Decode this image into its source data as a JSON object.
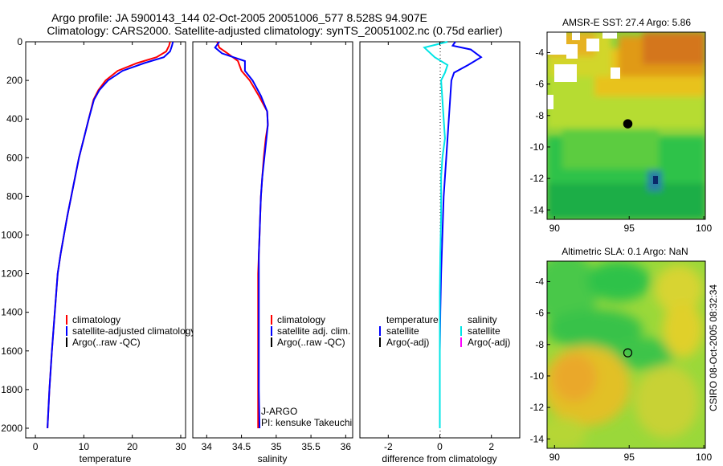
{
  "title_line1": "Argo profile: JA 5900143_144 02-Oct-2005 20051006_577 8.528S 94.907E",
  "title_line2": "Climatology: CARS2000. Satellite-adjusted climatology: synTS_20051002.nc (0.75d earlier)",
  "side_label": "CSIRO 08-Oct-2005 08:32:34",
  "colors": {
    "clim": "#ff0000",
    "sat": "#0000ff",
    "argo": "#000000",
    "cyan": "#00e5e5",
    "magenta": "#ff00ff"
  },
  "chart_data": [
    {
      "id": "temperature",
      "type": "line",
      "xlabel": "temperature",
      "ylabel": "",
      "xlim": [
        -2,
        31
      ],
      "ylim": [
        2050,
        0
      ],
      "xticks": [
        0,
        10,
        20,
        30
      ],
      "xtick_labels": [
        "0",
        "10",
        "20",
        "30"
      ],
      "yticks": [
        0,
        200,
        400,
        600,
        800,
        1000,
        1200,
        1400,
        1600,
        1800,
        2000
      ],
      "ytick_labels": [
        "0",
        "200",
        "400",
        "600",
        "800",
        "1000",
        "1200",
        "1400",
        "1600",
        "1800",
        "2000"
      ],
      "legend": [
        "climatology",
        "satellite-adjusted climatology",
        "Argo(..raw -QC)"
      ],
      "annotations": [],
      "series": [
        {
          "name": "climatology",
          "color": "#ff0000",
          "x": [
            27.8,
            27.6,
            27.0,
            25.0,
            21.0,
            17.0,
            14.5,
            13.0,
            12.0,
            11.0,
            10.0,
            9.0,
            8.2,
            7.4,
            6.6,
            5.9,
            5.2,
            4.6,
            4.0,
            3.4,
            2.9,
            2.5
          ],
          "y": [
            0,
            20,
            50,
            80,
            110,
            150,
            200,
            250,
            300,
            400,
            500,
            600,
            700,
            800,
            900,
            1000,
            1100,
            1200,
            1400,
            1600,
            1800,
            2000
          ]
        },
        {
          "name": "satellite-adjusted climatology",
          "color": "#0000ff",
          "x": [
            28.4,
            28.2,
            27.8,
            26.5,
            22.5,
            18.0,
            15.0,
            13.2,
            12.1,
            11.0,
            10.0,
            9.0,
            8.2,
            7.4,
            6.6,
            5.9,
            5.2,
            4.6,
            4.0,
            3.4,
            2.9,
            2.5
          ],
          "y": [
            0,
            20,
            50,
            80,
            110,
            150,
            200,
            250,
            300,
            400,
            500,
            600,
            700,
            800,
            900,
            1000,
            1100,
            1200,
            1400,
            1600,
            1800,
            2000
          ]
        }
      ]
    },
    {
      "id": "salinity",
      "type": "line",
      "xlabel": "salinity",
      "ylabel": "",
      "xlim": [
        33.8,
        36.1
      ],
      "ylim": [
        2050,
        0
      ],
      "xticks": [
        34,
        34.5,
        35,
        35.5,
        36
      ],
      "xtick_labels": [
        "34",
        "34.5",
        "35",
        "35.5",
        "36"
      ],
      "yticks": [],
      "ytick_labels": [],
      "legend": [
        "climatology",
        "satellite adj. clim.",
        "Argo(..raw -QC)"
      ],
      "annotations": [
        "J-ARGO",
        "PI: kensuke Takeuchi"
      ],
      "series": [
        {
          "name": "climatology",
          "color": "#ff0000",
          "x": [
            34.15,
            34.18,
            34.3,
            34.45,
            34.5,
            34.62,
            34.75,
            34.87,
            34.88,
            34.85,
            34.82,
            34.8,
            34.78,
            34.77,
            34.76,
            34.75,
            34.74,
            34.74,
            34.74,
            34.74,
            34.74
          ],
          "y": [
            0,
            30,
            60,
            100,
            150,
            200,
            280,
            360,
            430,
            500,
            600,
            700,
            800,
            900,
            1000,
            1100,
            1200,
            1400,
            1600,
            1800,
            2000
          ]
        },
        {
          "name": "satellite adj. clim.",
          "color": "#0000ff",
          "x": [
            34.18,
            34.12,
            34.22,
            34.55,
            34.55,
            34.66,
            34.78,
            34.87,
            34.88,
            34.86,
            34.83,
            34.8,
            34.78,
            34.77,
            34.76,
            34.75,
            34.75,
            34.75,
            34.75,
            34.75,
            34.76
          ],
          "y": [
            0,
            30,
            60,
            100,
            150,
            200,
            280,
            360,
            430,
            500,
            600,
            700,
            800,
            900,
            1000,
            1100,
            1200,
            1400,
            1600,
            1800,
            2000
          ]
        }
      ]
    },
    {
      "id": "difference",
      "type": "line",
      "xlabel": "difference from climatology",
      "ylabel": "",
      "xlim": [
        -3.1,
        3.1
      ],
      "ylim": [
        2050,
        0
      ],
      "xticks": [
        -2,
        0,
        2
      ],
      "xtick_labels": [
        "-2",
        "0",
        "2"
      ],
      "yticks": [],
      "ytick_labels": [],
      "legend_left_title": "temperature",
      "legend_right_title": "salinity",
      "legend_left": [
        "satellite",
        "Argo(-adj)"
      ],
      "legend_right": [
        "satellite",
        "Argo(-adj)"
      ],
      "annotations": [],
      "series": [
        {
          "name": "temperature satellite",
          "color": "#0000ff",
          "x": [
            0.6,
            0.5,
            1.2,
            1.6,
            1.1,
            0.55,
            0.45,
            0.4,
            0.35,
            0.3,
            0.25,
            0.15,
            0.1,
            0.05,
            0.02,
            0.0,
            0.0,
            0.0,
            0.0
          ],
          "y": [
            0,
            20,
            40,
            80,
            120,
            160,
            200,
            300,
            400,
            500,
            600,
            800,
            1000,
            1200,
            1400,
            1600,
            1800,
            1900,
            2000
          ]
        },
        {
          "name": "salinity satellite",
          "color": "#00e5e5",
          "x": [
            0.3,
            -0.6,
            -0.2,
            0.3,
            0.2,
            0.05,
            0.1,
            0.15,
            0.2,
            0.1,
            0.05,
            0.05,
            0.02,
            0.0,
            0.0,
            0.0,
            0.0
          ],
          "y": [
            0,
            30,
            80,
            120,
            160,
            200,
            300,
            400,
            500,
            600,
            700,
            900,
            1100,
            1300,
            1500,
            1800,
            2000
          ]
        }
      ]
    },
    {
      "id": "sst_map",
      "type": "heatmap",
      "title": "AMSR-E SST: 27.4 Argo: 5.86",
      "xlim": [
        89.5,
        100.1
      ],
      "ylim": [
        -14.6,
        -2.7
      ],
      "xticks": [
        90,
        95,
        100
      ],
      "xtick_labels": [
        "90",
        "95",
        "100"
      ],
      "yticks": [
        -4,
        -6,
        -8,
        -10,
        -12,
        -14
      ],
      "ytick_labels": [
        "-4",
        "-6",
        "-8",
        "-10",
        "-12",
        "-14"
      ],
      "argo_location": [
        94.907,
        -8.528
      ],
      "marker_note": "profile location"
    },
    {
      "id": "sla_map",
      "type": "heatmap",
      "title": "Altimetric SLA: 0.1 Argo: NaN",
      "xlim": [
        89.5,
        100.1
      ],
      "ylim": [
        -14.6,
        -2.7
      ],
      "xticks": [
        90,
        95,
        100
      ],
      "xtick_labels": [
        "90",
        "95",
        "100"
      ],
      "yticks": [
        -4,
        -6,
        -8,
        -10,
        -12,
        -14
      ],
      "ytick_labels": [
        "-4",
        "-6",
        "-8",
        "-10",
        "-12",
        "-14"
      ],
      "argo_location": [
        94.907,
        -8.528
      ]
    }
  ]
}
